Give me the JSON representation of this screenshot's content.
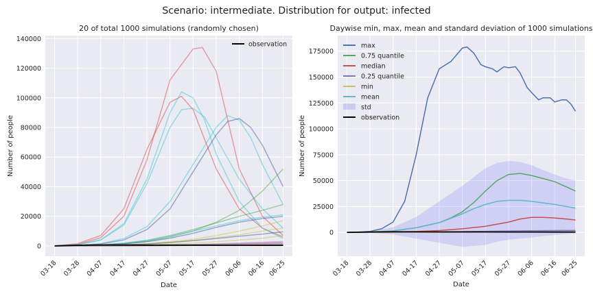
{
  "suptitle": "Scenario: intermediate. Distribution for output: infected",
  "chart_data": [
    {
      "type": "line",
      "title": "20 of total 1000 simulations (randomly chosen)",
      "xlabel": "Date",
      "ylabel": "Number of people",
      "x_ticks": [
        "03-18",
        "03-28",
        "04-07",
        "04-17",
        "04-27",
        "05-07",
        "05-17",
        "05-27",
        "06-06",
        "06-16",
        "06-25"
      ],
      "x_range_days": [
        -4,
        103
      ],
      "ylim": [
        -7000,
        142000
      ],
      "y_ticks": [
        0,
        20000,
        40000,
        60000,
        80000,
        100000,
        120000,
        140000
      ],
      "grid": true,
      "legend": {
        "position": "top-right",
        "entries": [
          {
            "label": "observation",
            "color": "#000000"
          }
        ]
      },
      "observation": {
        "color": "#000000",
        "x": [
          0,
          10,
          20,
          30,
          40,
          50,
          60,
          70,
          80,
          90,
          99
        ],
        "y": [
          0,
          400,
          600,
          550,
          500,
          480,
          450,
          420,
          400,
          380,
          350
        ]
      },
      "simulations_note": "20 randomly chosen simulation trajectories (values estimated)",
      "series": [
        {
          "color": "#d62728",
          "x": [
            0,
            10,
            20,
            30,
            40,
            50,
            60,
            64,
            70,
            75,
            80,
            90,
            99
          ],
          "y": [
            0,
            1000,
            5500,
            20000,
            58000,
            112000,
            133000,
            134000,
            118000,
            85000,
            52000,
            20000,
            7000
          ]
        },
        {
          "color": "#d62728",
          "x": [
            0,
            10,
            20,
            30,
            40,
            50,
            55,
            60,
            65,
            70,
            80,
            90,
            99
          ],
          "y": [
            0,
            1500,
            7000,
            25000,
            65000,
            97000,
            101000,
            92000,
            72000,
            52000,
            25000,
            12000,
            6000
          ]
        },
        {
          "color": "#17becf",
          "x": [
            0,
            10,
            20,
            30,
            40,
            50,
            55,
            60,
            65,
            70,
            80,
            90,
            99
          ],
          "y": [
            0,
            800,
            4000,
            15000,
            45000,
            90000,
            104000,
            100000,
            85000,
            62000,
            30000,
            12000,
            5000
          ]
        },
        {
          "color": "#17becf",
          "x": [
            0,
            10,
            20,
            30,
            40,
            50,
            55,
            60,
            65,
            70,
            80,
            90,
            99
          ],
          "y": [
            0,
            800,
            4000,
            14000,
            42000,
            80000,
            92000,
            93000,
            87000,
            73000,
            45000,
            25000,
            12000
          ]
        },
        {
          "color": "#17becf",
          "x": [
            0,
            10,
            20,
            30,
            40,
            50,
            60,
            70,
            75,
            80,
            85,
            90,
            99
          ],
          "y": [
            0,
            400,
            1500,
            5000,
            13000,
            30000,
            55000,
            80000,
            88000,
            85000,
            73000,
            55000,
            28000
          ]
        },
        {
          "color": "#1f3a93",
          "x": [
            0,
            10,
            20,
            30,
            40,
            50,
            60,
            70,
            75,
            80,
            85,
            90,
            99
          ],
          "y": [
            0,
            300,
            1300,
            4000,
            11000,
            25000,
            50000,
            75000,
            84000,
            86000,
            80000,
            68000,
            40000
          ]
        },
        {
          "color": "#2ca02c",
          "x": [
            0,
            10,
            20,
            30,
            40,
            50,
            60,
            70,
            80,
            90,
            99
          ],
          "y": [
            0,
            200,
            600,
            1500,
            3000,
            6000,
            10000,
            16000,
            24000,
            37000,
            52000
          ]
        },
        {
          "color": "#2ca02c",
          "x": [
            0,
            10,
            20,
            30,
            40,
            50,
            60,
            70,
            80,
            90,
            99
          ],
          "y": [
            0,
            200,
            700,
            1800,
            3800,
            7000,
            11000,
            15500,
            20000,
            24000,
            28000
          ]
        },
        {
          "color": "#17becf",
          "x": [
            0,
            10,
            20,
            30,
            40,
            50,
            60,
            70,
            80,
            90,
            99
          ],
          "y": [
            0,
            200,
            700,
            1800,
            3700,
            6500,
            10000,
            13500,
            17000,
            19500,
            21000
          ]
        },
        {
          "color": "#1f3a93",
          "x": [
            0,
            10,
            20,
            30,
            40,
            50,
            60,
            70,
            80,
            90,
            99
          ],
          "y": [
            0,
            150,
            500,
            1300,
            2800,
            5200,
            8500,
            12500,
            16000,
            18500,
            20000
          ]
        },
        {
          "color": "#bcbd22",
          "x": [
            0,
            10,
            20,
            30,
            40,
            50,
            60,
            70,
            80,
            90,
            99
          ],
          "y": [
            0,
            100,
            300,
            700,
            1500,
            2800,
            4500,
            7000,
            10000,
            13500,
            17000
          ]
        },
        {
          "color": "#bcbd22",
          "x": [
            0,
            10,
            20,
            30,
            40,
            50,
            60,
            70,
            80,
            90,
            99
          ],
          "y": [
            0,
            80,
            250,
            600,
            1200,
            2200,
            3700,
            5500,
            7500,
            10000,
            12000
          ]
        },
        {
          "color": "#1f3a93",
          "x": [
            0,
            10,
            20,
            30,
            40,
            50,
            60,
            70,
            80,
            90,
            99
          ],
          "y": [
            0,
            100,
            300,
            700,
            1300,
            2300,
            3500,
            5000,
            6500,
            8000,
            9500
          ]
        },
        {
          "color": "#bcbd22",
          "x": [
            0,
            10,
            20,
            30,
            40,
            50,
            60,
            70,
            80,
            90,
            99
          ],
          "y": [
            0,
            60,
            150,
            350,
            700,
            1200,
            1900,
            2800,
            3900,
            5200,
            7000
          ]
        },
        {
          "color": "#9467bd",
          "x": [
            0,
            10,
            20,
            30,
            40,
            50,
            60,
            70,
            80,
            90,
            99
          ],
          "y": [
            0,
            50,
            130,
            250,
            450,
            700,
            1000,
            1400,
            1900,
            2500,
            3000
          ]
        },
        {
          "color": "#8c564b",
          "x": [
            0,
            10,
            20,
            30,
            40,
            50,
            60,
            70,
            80,
            90,
            99
          ],
          "y": [
            0,
            40,
            100,
            200,
            350,
            550,
            800,
            1100,
            1500,
            1900,
            2300
          ]
        },
        {
          "color": "#9467bd",
          "x": [
            0,
            10,
            20,
            30,
            40,
            50,
            60,
            70,
            80,
            90,
            99
          ],
          "y": [
            0,
            30,
            80,
            150,
            260,
            400,
            600,
            850,
            1150,
            1500,
            1800
          ]
        },
        {
          "color": "#e377c2",
          "x": [
            0,
            10,
            20,
            30,
            40,
            50,
            60,
            70,
            80,
            90,
            99
          ],
          "y": [
            0,
            20,
            60,
            120,
            200,
            300,
            450,
            650,
            900,
            1200,
            1500
          ]
        },
        {
          "color": "#8c564b",
          "x": [
            0,
            10,
            20,
            30,
            40,
            50,
            60,
            70,
            80,
            90,
            99
          ],
          "y": [
            0,
            20,
            50,
            100,
            160,
            240,
            350,
            500,
            680,
            900,
            1100
          ]
        },
        {
          "color": "#7f7f7f",
          "x": [
            0,
            10,
            20,
            30,
            40,
            50,
            60,
            70,
            80,
            90,
            99
          ],
          "y": [
            0,
            10,
            40,
            80,
            130,
            200,
            280,
            380,
            500,
            650,
            800
          ]
        }
      ]
    },
    {
      "type": "line",
      "title": "Daywise min, max, mean and standard deviation of 1000 simulations",
      "xlabel": "Date",
      "ylabel": "Number of people",
      "x_ticks": [
        "03-18",
        "03-28",
        "04-07",
        "04-17",
        "04-27",
        "05-07",
        "05-17",
        "05-27",
        "06-06",
        "06-16",
        "06-25"
      ],
      "x_range_days": [
        -4,
        103
      ],
      "ylim": [
        -23000,
        190000
      ],
      "y_ticks": [
        0,
        25000,
        50000,
        75000,
        100000,
        125000,
        150000,
        175000
      ],
      "grid": true,
      "legend": {
        "position": "top-left"
      },
      "series": [
        {
          "name": "max",
          "color": "#4c72b0",
          "x": [
            0,
            5,
            10,
            15,
            20,
            25,
            30,
            35,
            40,
            45,
            50,
            52,
            55,
            58,
            60,
            63,
            65,
            68,
            70,
            73,
            75,
            78,
            80,
            83,
            85,
            88,
            90,
            93,
            95,
            97,
            99
          ],
          "y": [
            0,
            300,
            1000,
            3500,
            10000,
            30000,
            75000,
            130000,
            158000,
            165000,
            178000,
            179000,
            173000,
            162000,
            160000,
            158000,
            155000,
            160000,
            159000,
            160000,
            154000,
            140000,
            135000,
            128000,
            130000,
            130000,
            126000,
            128000,
            128000,
            124000,
            117000
          ]
        },
        {
          "name": "0.75 quantile",
          "color": "#55a868",
          "x": [
            0,
            10,
            20,
            30,
            40,
            45,
            50,
            55,
            60,
            65,
            70,
            75,
            80,
            85,
            90,
            95,
            99
          ],
          "y": [
            0,
            300,
            1500,
            4500,
            9500,
            14000,
            20000,
            29000,
            40000,
            50000,
            56000,
            57000,
            55000,
            52000,
            49000,
            44000,
            40000
          ]
        },
        {
          "name": "median",
          "color": "#c44e52",
          "x": [
            0,
            10,
            20,
            30,
            40,
            50,
            60,
            70,
            75,
            80,
            85,
            90,
            95,
            99
          ],
          "y": [
            0,
            100,
            400,
            900,
            1800,
            3500,
            6000,
            10000,
            13000,
            14500,
            14500,
            14000,
            13000,
            12000
          ]
        },
        {
          "name": "0.25 quantile",
          "color": "#8172b2",
          "x": [
            0,
            10,
            20,
            30,
            40,
            50,
            60,
            70,
            80,
            90,
            99
          ],
          "y": [
            0,
            50,
            150,
            300,
            500,
            800,
            1100,
            1400,
            1600,
            1800,
            2000
          ]
        },
        {
          "name": "min",
          "color": "#ccb974",
          "x": [
            0,
            10,
            20,
            30,
            40,
            50,
            60,
            70,
            80,
            90,
            99
          ],
          "y": [
            0,
            20,
            60,
            100,
            150,
            200,
            250,
            300,
            350,
            400,
            450
          ]
        },
        {
          "name": "mean",
          "color": "#64b5cd",
          "x": [
            0,
            10,
            20,
            30,
            40,
            45,
            50,
            55,
            60,
            65,
            70,
            75,
            80,
            85,
            90,
            95,
            99
          ],
          "y": [
            0,
            300,
            1500,
            4500,
            9500,
            13500,
            18000,
            23000,
            27000,
            30000,
            31000,
            31000,
            30000,
            28500,
            27000,
            25000,
            23500
          ]
        },
        {
          "name": "std",
          "color": "#6a6aff",
          "type": "band",
          "x": [
            0,
            10,
            20,
            30,
            40,
            50,
            60,
            65,
            70,
            75,
            80,
            85,
            90,
            95,
            99
          ],
          "upper": [
            0,
            1000,
            5000,
            15000,
            30000,
            45000,
            62000,
            67000,
            69000,
            68000,
            65000,
            60000,
            56000,
            52000,
            50000
          ],
          "lower": [
            0,
            -400,
            -2000,
            -6000,
            -10000,
            -14000,
            -12000,
            -9000,
            -7000,
            -6000,
            -5000,
            -3500,
            -2500,
            -1500,
            -1000
          ]
        },
        {
          "name": "observation",
          "color": "#000000",
          "x": [
            0,
            10,
            20,
            30,
            40,
            50,
            60,
            70,
            80,
            90,
            99
          ],
          "y": [
            0,
            400,
            600,
            550,
            500,
            480,
            450,
            420,
            400,
            380,
            350
          ]
        }
      ]
    }
  ]
}
